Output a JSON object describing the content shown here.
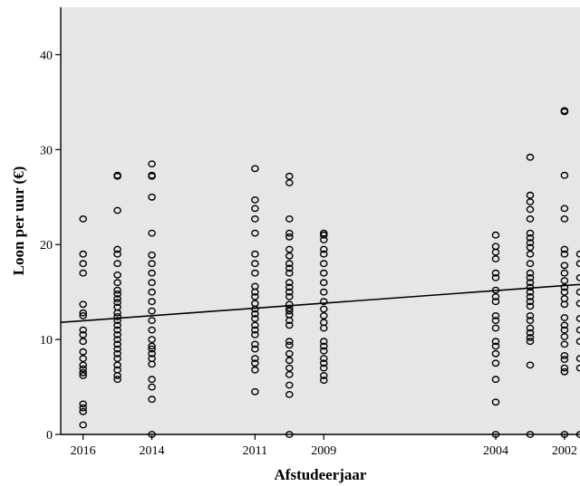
{
  "chart_data": {
    "type": "scatter",
    "title": "",
    "xlabel": "Afstudeerjaar",
    "ylabel": "Loon per uur (€)",
    "x_reversed": true,
    "xlim": [
      2001.55,
      2016.65
    ],
    "ylim": [
      0,
      45
    ],
    "x_ticks": [
      2016,
      2014,
      2011,
      2009,
      2004,
      2002
    ],
    "y_ticks": [
      0,
      10,
      20,
      30,
      40
    ],
    "grid": false,
    "legend": "none",
    "colors": {
      "plot_background": "#e6e6e6",
      "marker": "#000000",
      "line": "#000000"
    },
    "fit_line": {
      "x": [
        2016.65,
        2001.55
      ],
      "y": [
        11.8,
        15.8
      ]
    },
    "series": [
      {
        "points": [
          [
            2016,
            22.7
          ],
          [
            2016,
            19.0
          ],
          [
            2016,
            18.0
          ],
          [
            2016,
            17.0
          ],
          [
            2016,
            13.7
          ],
          [
            2016,
            12.8
          ],
          [
            2016,
            12.5
          ],
          [
            2016,
            11.0
          ],
          [
            2016,
            10.5
          ],
          [
            2016,
            9.8
          ],
          [
            2016,
            8.7
          ],
          [
            2016,
            8.0
          ],
          [
            2016,
            7.3
          ],
          [
            2016,
            6.9
          ],
          [
            2016,
            6.5
          ],
          [
            2016,
            6.2
          ],
          [
            2016,
            3.2
          ],
          [
            2016,
            2.8
          ],
          [
            2016,
            2.4
          ],
          [
            2016,
            1.0
          ],
          [
            2015,
            27.3
          ],
          [
            2015,
            27.2
          ],
          [
            2015,
            23.6
          ],
          [
            2015,
            19.5
          ],
          [
            2015,
            19.0
          ],
          [
            2015,
            18.0
          ],
          [
            2015,
            16.8
          ],
          [
            2015,
            16.0
          ],
          [
            2015,
            15.2
          ],
          [
            2015,
            14.8
          ],
          [
            2015,
            14.3
          ],
          [
            2015,
            13.9
          ],
          [
            2015,
            13.4
          ],
          [
            2015,
            12.8
          ],
          [
            2015,
            12.4
          ],
          [
            2015,
            12.0
          ],
          [
            2015,
            11.5
          ],
          [
            2015,
            11.0
          ],
          [
            2015,
            10.5
          ],
          [
            2015,
            10.0
          ],
          [
            2015,
            9.5
          ],
          [
            2015,
            9.0
          ],
          [
            2015,
            8.5
          ],
          [
            2015,
            8.0
          ],
          [
            2015,
            7.3
          ],
          [
            2015,
            6.8
          ],
          [
            2015,
            6.2
          ],
          [
            2015,
            5.8
          ],
          [
            2014,
            28.5
          ],
          [
            2014,
            27.3
          ],
          [
            2014,
            27.2
          ],
          [
            2014,
            25.0
          ],
          [
            2014,
            21.2
          ],
          [
            2014,
            18.9
          ],
          [
            2014,
            18.0
          ],
          [
            2014,
            17.0
          ],
          [
            2014,
            16.0
          ],
          [
            2014,
            15.0
          ],
          [
            2014,
            14.0
          ],
          [
            2014,
            13.0
          ],
          [
            2014,
            12.0
          ],
          [
            2014,
            11.0
          ],
          [
            2014,
            10.0
          ],
          [
            2014,
            9.3
          ],
          [
            2014,
            9.0
          ],
          [
            2014,
            8.5
          ],
          [
            2014,
            8.0
          ],
          [
            2014,
            7.4
          ],
          [
            2014,
            5.8
          ],
          [
            2014,
            5.0
          ],
          [
            2014,
            3.7
          ],
          [
            2014,
            0.0
          ],
          [
            2011,
            28.0
          ],
          [
            2011,
            24.7
          ],
          [
            2011,
            23.8
          ],
          [
            2011,
            22.7
          ],
          [
            2011,
            21.2
          ],
          [
            2011,
            19.0
          ],
          [
            2011,
            18.0
          ],
          [
            2011,
            17.0
          ],
          [
            2011,
            15.6
          ],
          [
            2011,
            15.0
          ],
          [
            2011,
            14.5
          ],
          [
            2011,
            13.8
          ],
          [
            2011,
            13.2
          ],
          [
            2011,
            12.7
          ],
          [
            2011,
            12.2
          ],
          [
            2011,
            11.5
          ],
          [
            2011,
            11.0
          ],
          [
            2011,
            10.5
          ],
          [
            2011,
            9.5
          ],
          [
            2011,
            9.0
          ],
          [
            2011,
            8.0
          ],
          [
            2011,
            7.5
          ],
          [
            2011,
            6.8
          ],
          [
            2011,
            4.5
          ],
          [
            2010,
            27.2
          ],
          [
            2010,
            26.5
          ],
          [
            2010,
            22.7
          ],
          [
            2010,
            21.2
          ],
          [
            2010,
            20.8
          ],
          [
            2010,
            19.5
          ],
          [
            2010,
            18.8
          ],
          [
            2010,
            18.0
          ],
          [
            2010,
            17.5
          ],
          [
            2010,
            17.0
          ],
          [
            2010,
            16.0
          ],
          [
            2010,
            15.5
          ],
          [
            2010,
            15.0
          ],
          [
            2010,
            14.5
          ],
          [
            2010,
            13.7
          ],
          [
            2010,
            13.3
          ],
          [
            2010,
            13.0
          ],
          [
            2010,
            12.6
          ],
          [
            2010,
            12.0
          ],
          [
            2010,
            11.5
          ],
          [
            2010,
            9.8
          ],
          [
            2010,
            9.4
          ],
          [
            2010,
            8.5
          ],
          [
            2010,
            7.8
          ],
          [
            2010,
            7.0
          ],
          [
            2010,
            6.3
          ],
          [
            2010,
            5.2
          ],
          [
            2010,
            4.2
          ],
          [
            2010,
            0.0
          ],
          [
            2009,
            21.2
          ],
          [
            2009,
            21.0
          ],
          [
            2009,
            20.5
          ],
          [
            2009,
            19.5
          ],
          [
            2009,
            19.0
          ],
          [
            2009,
            18.0
          ],
          [
            2009,
            17.0
          ],
          [
            2009,
            16.0
          ],
          [
            2009,
            15.0
          ],
          [
            2009,
            14.0
          ],
          [
            2009,
            13.2
          ],
          [
            2009,
            12.5
          ],
          [
            2009,
            11.8
          ],
          [
            2009,
            11.2
          ],
          [
            2009,
            9.8
          ],
          [
            2009,
            9.3
          ],
          [
            2009,
            8.8
          ],
          [
            2009,
            8.0
          ],
          [
            2009,
            7.5
          ],
          [
            2009,
            7.0
          ],
          [
            2009,
            6.2
          ],
          [
            2009,
            5.7
          ],
          [
            2004,
            21.0
          ],
          [
            2004,
            19.8
          ],
          [
            2004,
            19.2
          ],
          [
            2004,
            18.5
          ],
          [
            2004,
            17.0
          ],
          [
            2004,
            16.5
          ],
          [
            2004,
            15.2
          ],
          [
            2004,
            14.5
          ],
          [
            2004,
            14.0
          ],
          [
            2004,
            12.5
          ],
          [
            2004,
            12.0
          ],
          [
            2004,
            11.2
          ],
          [
            2004,
            9.8
          ],
          [
            2004,
            9.3
          ],
          [
            2004,
            8.5
          ],
          [
            2004,
            7.5
          ],
          [
            2004,
            5.8
          ],
          [
            2004,
            3.4
          ],
          [
            2004,
            0.0
          ],
          [
            2003,
            29.2
          ],
          [
            2003,
            25.2
          ],
          [
            2003,
            24.5
          ],
          [
            2003,
            23.7
          ],
          [
            2003,
            22.7
          ],
          [
            2003,
            21.2
          ],
          [
            2003,
            20.7
          ],
          [
            2003,
            20.2
          ],
          [
            2003,
            19.7
          ],
          [
            2003,
            19.0
          ],
          [
            2003,
            18.0
          ],
          [
            2003,
            17.0
          ],
          [
            2003,
            16.5
          ],
          [
            2003,
            16.0
          ],
          [
            2003,
            15.5
          ],
          [
            2003,
            15.0
          ],
          [
            2003,
            14.5
          ],
          [
            2003,
            14.0
          ],
          [
            2003,
            13.5
          ],
          [
            2003,
            12.5
          ],
          [
            2003,
            12.0
          ],
          [
            2003,
            11.2
          ],
          [
            2003,
            10.7
          ],
          [
            2003,
            10.2
          ],
          [
            2003,
            9.8
          ],
          [
            2003,
            7.3
          ],
          [
            2003,
            0.0
          ],
          [
            2002,
            34.1
          ],
          [
            2002,
            34.0
          ],
          [
            2002,
            27.3
          ],
          [
            2002,
            23.8
          ],
          [
            2002,
            22.7
          ],
          [
            2002,
            19.5
          ],
          [
            2002,
            19.0
          ],
          [
            2002,
            17.8
          ],
          [
            2002,
            17.0
          ],
          [
            2002,
            16.2
          ],
          [
            2002,
            15.5
          ],
          [
            2002,
            15.0
          ],
          [
            2002,
            14.3
          ],
          [
            2002,
            13.7
          ],
          [
            2002,
            12.3
          ],
          [
            2002,
            11.5
          ],
          [
            2002,
            11.0
          ],
          [
            2002,
            10.3
          ],
          [
            2002,
            9.5
          ],
          [
            2002,
            8.3
          ],
          [
            2002,
            7.9
          ],
          [
            2002,
            7.0
          ],
          [
            2002,
            6.6
          ],
          [
            2002,
            0.0
          ],
          [
            2001.55,
            19.0
          ],
          [
            2001.55,
            18.0
          ],
          [
            2001.55,
            16.5
          ],
          [
            2001.55,
            15.0
          ],
          [
            2001.55,
            13.8
          ],
          [
            2001.55,
            12.2
          ],
          [
            2001.55,
            11.0
          ],
          [
            2001.55,
            9.8
          ],
          [
            2001.55,
            8.0
          ],
          [
            2001.55,
            7.0
          ],
          [
            2001.55,
            0.0
          ]
        ]
      }
    ]
  }
}
